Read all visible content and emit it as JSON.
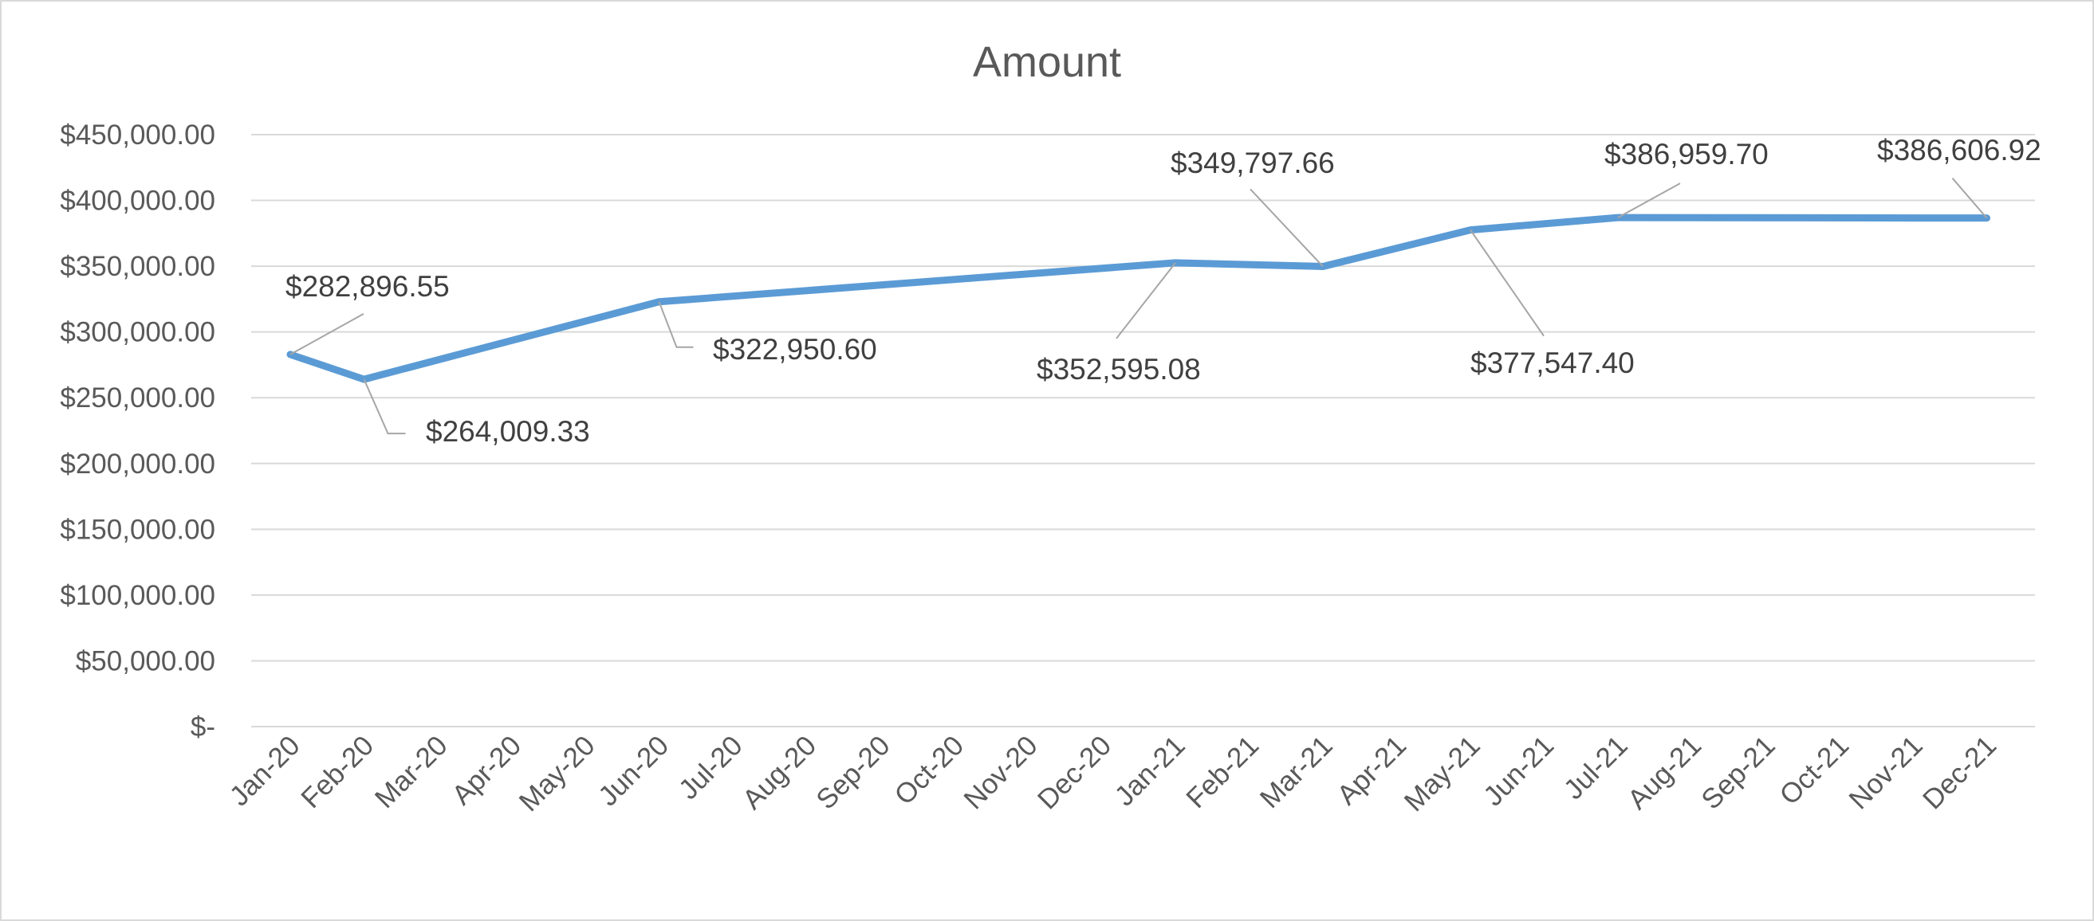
{
  "chart_data": {
    "type": "line",
    "title": "Amount",
    "xlabel": "",
    "ylabel": "",
    "categories": [
      "Jan-20",
      "Feb-20",
      "Mar-20",
      "Apr-20",
      "May-20",
      "Jun-20",
      "Jul-20",
      "Aug-20",
      "Sep-20",
      "Oct-20",
      "Nov-20",
      "Dec-20",
      "Jan-21",
      "Feb-21",
      "Mar-21",
      "Apr-21",
      "May-21",
      "Jun-21",
      "Jul-21",
      "Aug-21",
      "Sep-21",
      "Oct-21",
      "Nov-21",
      "Dec-21"
    ],
    "y_ticks": [
      "$-",
      "$50,000.00",
      "$100,000.00",
      "$150,000.00",
      "$200,000.00",
      "$250,000.00",
      "$300,000.00",
      "$350,000.00",
      "$400,000.00",
      "$450,000.00"
    ],
    "ylim": [
      0,
      450000
    ],
    "grid": true,
    "legend": "none",
    "series": [
      {
        "color": "#5b9bd5",
        "points": [
          {
            "x": "Jan-20",
            "y": 282896.55,
            "label": "$282,896.55"
          },
          {
            "x": "Feb-20",
            "y": 264009.33,
            "label": "$264,009.33"
          },
          {
            "x": "Jun-20",
            "y": 322950.6,
            "label": "$322,950.60"
          },
          {
            "x": "Jan-21",
            "y": 352595.08,
            "label": "$352,595.08"
          },
          {
            "x": "Mar-21",
            "y": 349797.66,
            "label": "$349,797.66"
          },
          {
            "x": "May-21",
            "y": 377547.4,
            "label": "$377,547.40"
          },
          {
            "x": "Jul-21",
            "y": 386959.7,
            "label": "$386,959.70"
          },
          {
            "x": "Dec-21",
            "y": 386606.92,
            "label": "$386,606.92"
          }
        ]
      }
    ]
  }
}
